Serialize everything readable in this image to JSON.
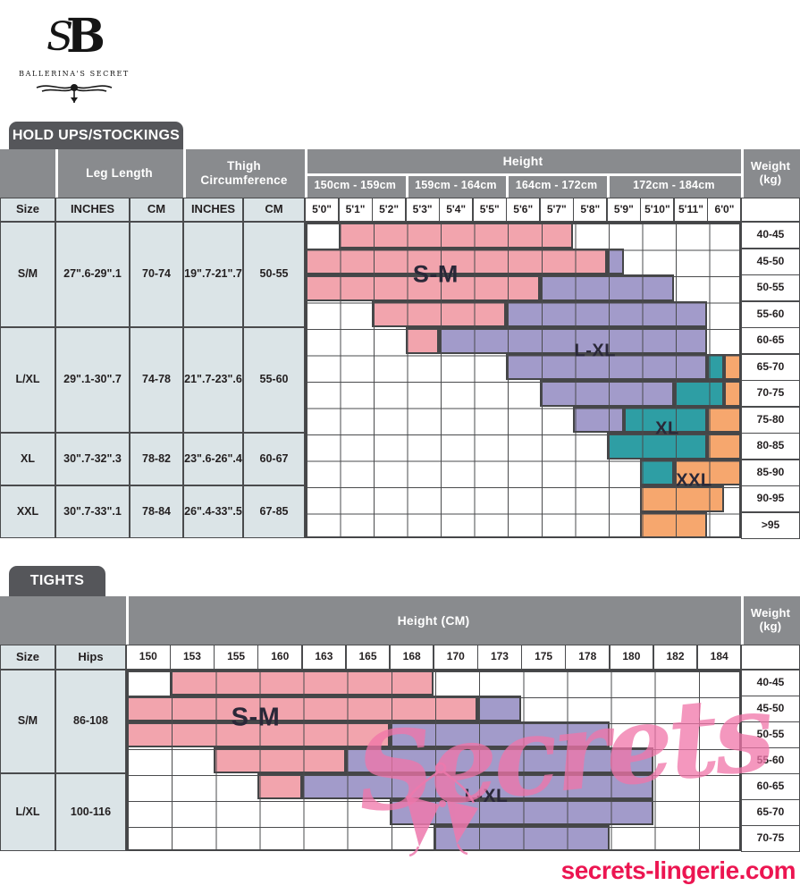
{
  "brand": {
    "monogram_s": "S",
    "monogram_b": "B",
    "name": "BALLERINA'S SECRET"
  },
  "colors": {
    "pink": "#F2A4AD",
    "purple": "#A29BCA",
    "teal": "#2E9EA4",
    "orange": "#F6A76E",
    "tab_grey": "#55565A",
    "header_grey": "#898B8E",
    "cell_blue": "#DBE4E7",
    "grid_border": "#4A4B4D",
    "watermark_pink": "#EE79AD",
    "site_red": "#EC1551"
  },
  "watermark": {
    "text": "Secrets"
  },
  "footer": {
    "site": "secrets-lingerie.com"
  },
  "chart_data": [
    {
      "type": "heatmap",
      "title": "HOLD UPS/STOCKINGS",
      "columns": {
        "size": "Size",
        "leg": "Leg Length",
        "thigh": "Thigh Circumference",
        "inches": "INCHES",
        "cm": "CM",
        "height": "Height",
        "weight": "Weight (kg)"
      },
      "x_groups": [
        {
          "label": "150cm - 159cm",
          "span": 3
        },
        {
          "label": "159cm - 164cm",
          "span": 3
        },
        {
          "label": "164cm - 172cm",
          "span": 3
        },
        {
          "label": "172cm - 184cm",
          "span": 4
        }
      ],
      "x_ticks": [
        "5'0\"",
        "5'1\"",
        "5'2\"",
        "5'3\"",
        "5'4\"",
        "5'5\"",
        "5'6\"",
        "5'7\"",
        "5'8\"",
        "5'9\"",
        "5'10\"",
        "5'11\"",
        "6'0\""
      ],
      "y_ticks": [
        "40-45",
        "45-50",
        "50-55",
        "55-60",
        "60-65",
        "65-70",
        "70-75",
        "75-80",
        "80-85",
        "85-90",
        "90-95",
        ">95"
      ],
      "legend": [
        {
          "size": "S-M",
          "color": "#F2A4AD"
        },
        {
          "size": "L-XL",
          "color": "#A29BCA"
        },
        {
          "size": "XL",
          "color": "#2E9EA4"
        },
        {
          "size": "XXL",
          "color": "#F6A76E"
        }
      ],
      "resolution": "half-column units (26 halves = 13 height columns)",
      "cells": [
        {
          "row": "40-45",
          "regions": [
            [
              "S-M",
              3,
              16
            ]
          ]
        },
        {
          "row": "45-50",
          "regions": [
            [
              "S-M",
              1,
              18
            ],
            [
              "L-XL",
              19,
              19
            ]
          ]
        },
        {
          "row": "50-55",
          "regions": [
            [
              "S-M",
              1,
              14
            ],
            [
              "L-XL",
              15,
              22
            ]
          ]
        },
        {
          "row": "55-60",
          "regions": [
            [
              "S-M",
              5,
              12
            ],
            [
              "L-XL",
              13,
              24
            ]
          ]
        },
        {
          "row": "60-65",
          "regions": [
            [
              "S-M",
              7,
              8
            ],
            [
              "L-XL",
              9,
              24
            ]
          ]
        },
        {
          "row": "65-70",
          "regions": [
            [
              "L-XL",
              13,
              24
            ],
            [
              "XL",
              25,
              25
            ],
            [
              "XXL",
              26,
              26
            ]
          ]
        },
        {
          "row": "70-75",
          "regions": [
            [
              "L-XL",
              15,
              22
            ],
            [
              "XL",
              23,
              25
            ],
            [
              "XXL",
              26,
              26
            ]
          ]
        },
        {
          "row": "75-80",
          "regions": [
            [
              "L-XL",
              17,
              19
            ],
            [
              "XL",
              20,
              24
            ],
            [
              "XXL",
              25,
              26
            ]
          ]
        },
        {
          "row": "80-85",
          "regions": [
            [
              "XL",
              19,
              24
            ],
            [
              "XXL",
              25,
              26
            ]
          ]
        },
        {
          "row": "85-90",
          "regions": [
            [
              "XL",
              21,
              22
            ],
            [
              "XXL",
              23,
              26
            ]
          ]
        },
        {
          "row": "90-95",
          "regions": [
            [
              "XXL",
              21,
              25
            ]
          ]
        },
        {
          "row": ">95",
          "regions": [
            [
              "XXL",
              21,
              24
            ]
          ]
        }
      ],
      "size_rows": [
        {
          "size": "S/M",
          "leg_inches": "27\".6-29\".1",
          "leg_cm": "70-74",
          "thigh_inches": "19\".7-21\".7",
          "thigh_cm": "50-55",
          "weight_rows": 4
        },
        {
          "size": "L/XL",
          "leg_inches": "29\".1-30\".7",
          "leg_cm": "74-78",
          "thigh_inches": "21\".7-23\".6",
          "thigh_cm": "55-60",
          "weight_rows": 4
        },
        {
          "size": "XL",
          "leg_inches": "30\".7-32\".3",
          "leg_cm": "78-82",
          "thigh_inches": "23\".6-26\".4",
          "thigh_cm": "60-67",
          "weight_rows": 2
        },
        {
          "size": "XXL",
          "leg_inches": "30\".7-33\".1",
          "leg_cm": "78-84",
          "thigh_inches": "26\".4-33\".5",
          "thigh_cm": "67-85",
          "weight_rows": 2
        }
      ],
      "region_labels": [
        {
          "text": "S-M",
          "h": 7.8,
          "r": 2.0
        },
        {
          "text": "L-XL",
          "h": 17.3,
          "r": 4.92
        },
        {
          "text": "XL",
          "h": 21.6,
          "r": 7.86
        },
        {
          "text": "XXL",
          "h": 23.2,
          "r": 9.83
        }
      ]
    },
    {
      "type": "heatmap",
      "title": "TIGHTS",
      "columns": {
        "size": "Size",
        "hips": "Hips",
        "height": "Height (CM)",
        "weight": "Weight (kg)"
      },
      "x_ticks": [
        "150",
        "153",
        "155",
        "160",
        "163",
        "165",
        "168",
        "170",
        "173",
        "175",
        "178",
        "180",
        "182",
        "184"
      ],
      "y_ticks": [
        "40-45",
        "45-50",
        "50-55",
        "55-60",
        "60-65",
        "65-70",
        "70-75"
      ],
      "legend": [
        {
          "size": "S-M",
          "color": "#F2A4AD"
        },
        {
          "size": "L-XL",
          "color": "#A29BCA"
        }
      ],
      "resolution": "half-column units (28 halves = 14 height columns)",
      "cells": [
        {
          "row": "40-45",
          "regions": [
            [
              "S-M",
              3,
              14
            ]
          ]
        },
        {
          "row": "45-50",
          "regions": [
            [
              "S-M",
              1,
              16
            ],
            [
              "L-XL",
              17,
              18
            ]
          ]
        },
        {
          "row": "50-55",
          "regions": [
            [
              "S-M",
              1,
              12
            ],
            [
              "L-XL",
              13,
              22
            ]
          ]
        },
        {
          "row": "55-60",
          "regions": [
            [
              "S-M",
              5,
              10
            ],
            [
              "L-XL",
              11,
              24
            ]
          ]
        },
        {
          "row": "60-65",
          "regions": [
            [
              "S-M",
              7,
              8
            ],
            [
              "L-XL",
              9,
              24
            ]
          ]
        },
        {
          "row": "65-70",
          "regions": [
            [
              "L-XL",
              13,
              24
            ]
          ]
        },
        {
          "row": "70-75",
          "regions": [
            [
              "L-XL",
              15,
              22
            ]
          ]
        }
      ],
      "size_rows": [
        {
          "size": "S/M",
          "hips": "86-108",
          "weight_rows": 4
        },
        {
          "size": "L/XL",
          "hips": "100-116",
          "weight_rows": 3
        }
      ],
      "region_labels": [
        {
          "text": "S-M",
          "h": 5.9,
          "r": 1.86
        },
        {
          "text": "L-XL",
          "h": 16.4,
          "r": 4.9
        }
      ]
    }
  ]
}
